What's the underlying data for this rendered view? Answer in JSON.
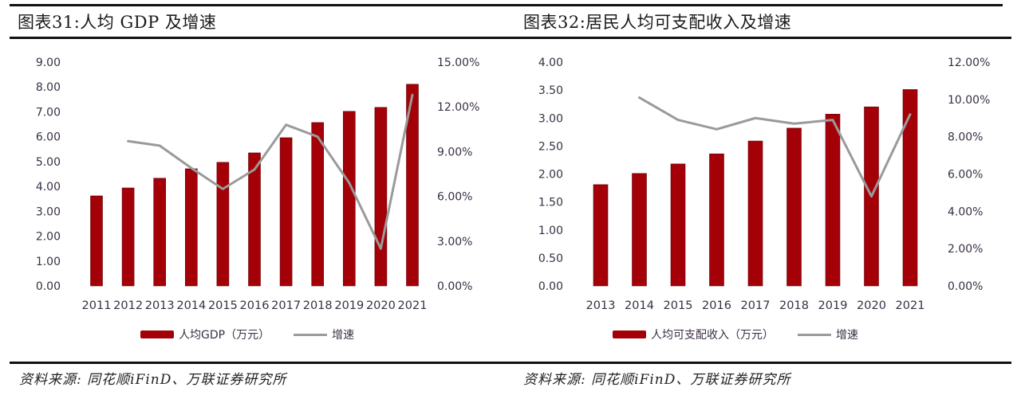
{
  "colors": {
    "bar": "#a30008",
    "line": "#9a9a9a",
    "axis_text": "#3a2f45",
    "rule": "#111111"
  },
  "charts": [
    {
      "title": "图表31:人均 GDP 及增速",
      "source": "资料来源: 同花顺iFinD、万联证券研究所",
      "legend": {
        "bar": "人均GDP（万元）",
        "line": "增速"
      },
      "left_ticks": [
        "9.00",
        "8.00",
        "7.00",
        "6.00",
        "5.00",
        "4.00",
        "3.00",
        "2.00",
        "1.00",
        "0.00"
      ],
      "right_ticks": [
        "15.00%",
        "12.00%",
        "9.00%",
        "6.00%",
        "3.00%",
        "0.00%"
      ],
      "years": [
        "2011",
        "2012",
        "2013",
        "2014",
        "2015",
        "2016",
        "2017",
        "2018",
        "2019",
        "2020",
        "2021"
      ]
    },
    {
      "title": "图表32:居民人均可支配收入及增速",
      "source": "资料来源: 同花顺iFinD、万联证券研究所",
      "legend": {
        "bar": "人均可支配收入（万元）",
        "line": "增速"
      },
      "left_ticks": [
        "4.00",
        "3.50",
        "3.00",
        "2.50",
        "2.00",
        "1.50",
        "1.00",
        "0.50",
        "0.00"
      ],
      "right_ticks": [
        "12.00%",
        "10.00%",
        "8.00%",
        "6.00%",
        "4.00%",
        "2.00%",
        "0.00%"
      ],
      "years": [
        "2013",
        "2014",
        "2015",
        "2016",
        "2017",
        "2018",
        "2019",
        "2020",
        "2021"
      ]
    }
  ],
  "chart_data": [
    {
      "type": "bar",
      "title": "图表31:人均 GDP 及增速",
      "categories": [
        "2011",
        "2012",
        "2013",
        "2014",
        "2015",
        "2016",
        "2017",
        "2018",
        "2019",
        "2020",
        "2021"
      ],
      "series": [
        {
          "name": "人均GDP（万元）",
          "type": "bar",
          "axis": "left",
          "values": [
            3.62,
            3.94,
            4.33,
            4.71,
            4.97,
            5.35,
            5.96,
            6.57,
            7.02,
            7.18,
            8.11
          ]
        },
        {
          "name": "增速",
          "type": "line",
          "axis": "right",
          "unit": "%",
          "values": [
            null,
            9.7,
            9.4,
            7.9,
            6.5,
            7.8,
            10.8,
            10.0,
            6.9,
            2.5,
            12.8
          ]
        }
      ],
      "xlabel": "",
      "ylabel": "",
      "ylim": [
        0,
        9
      ],
      "y2lim": [
        0,
        15
      ],
      "grid": false,
      "legend_position": "bottom"
    },
    {
      "type": "bar",
      "title": "图表32:居民人均可支配收入及增速",
      "categories": [
        "2013",
        "2014",
        "2015",
        "2016",
        "2017",
        "2018",
        "2019",
        "2020",
        "2021"
      ],
      "series": [
        {
          "name": "人均可支配收入（万元）",
          "type": "bar",
          "axis": "left",
          "values": [
            1.81,
            2.01,
            2.18,
            2.36,
            2.59,
            2.82,
            3.07,
            3.2,
            3.51
          ]
        },
        {
          "name": "增速",
          "type": "line",
          "axis": "right",
          "unit": "%",
          "values": [
            null,
            10.1,
            8.9,
            8.4,
            9.0,
            8.7,
            8.9,
            4.8,
            9.2
          ]
        }
      ],
      "xlabel": "",
      "ylabel": "",
      "ylim": [
        0,
        4
      ],
      "y2lim": [
        0,
        12
      ],
      "grid": false,
      "legend_position": "bottom"
    }
  ]
}
